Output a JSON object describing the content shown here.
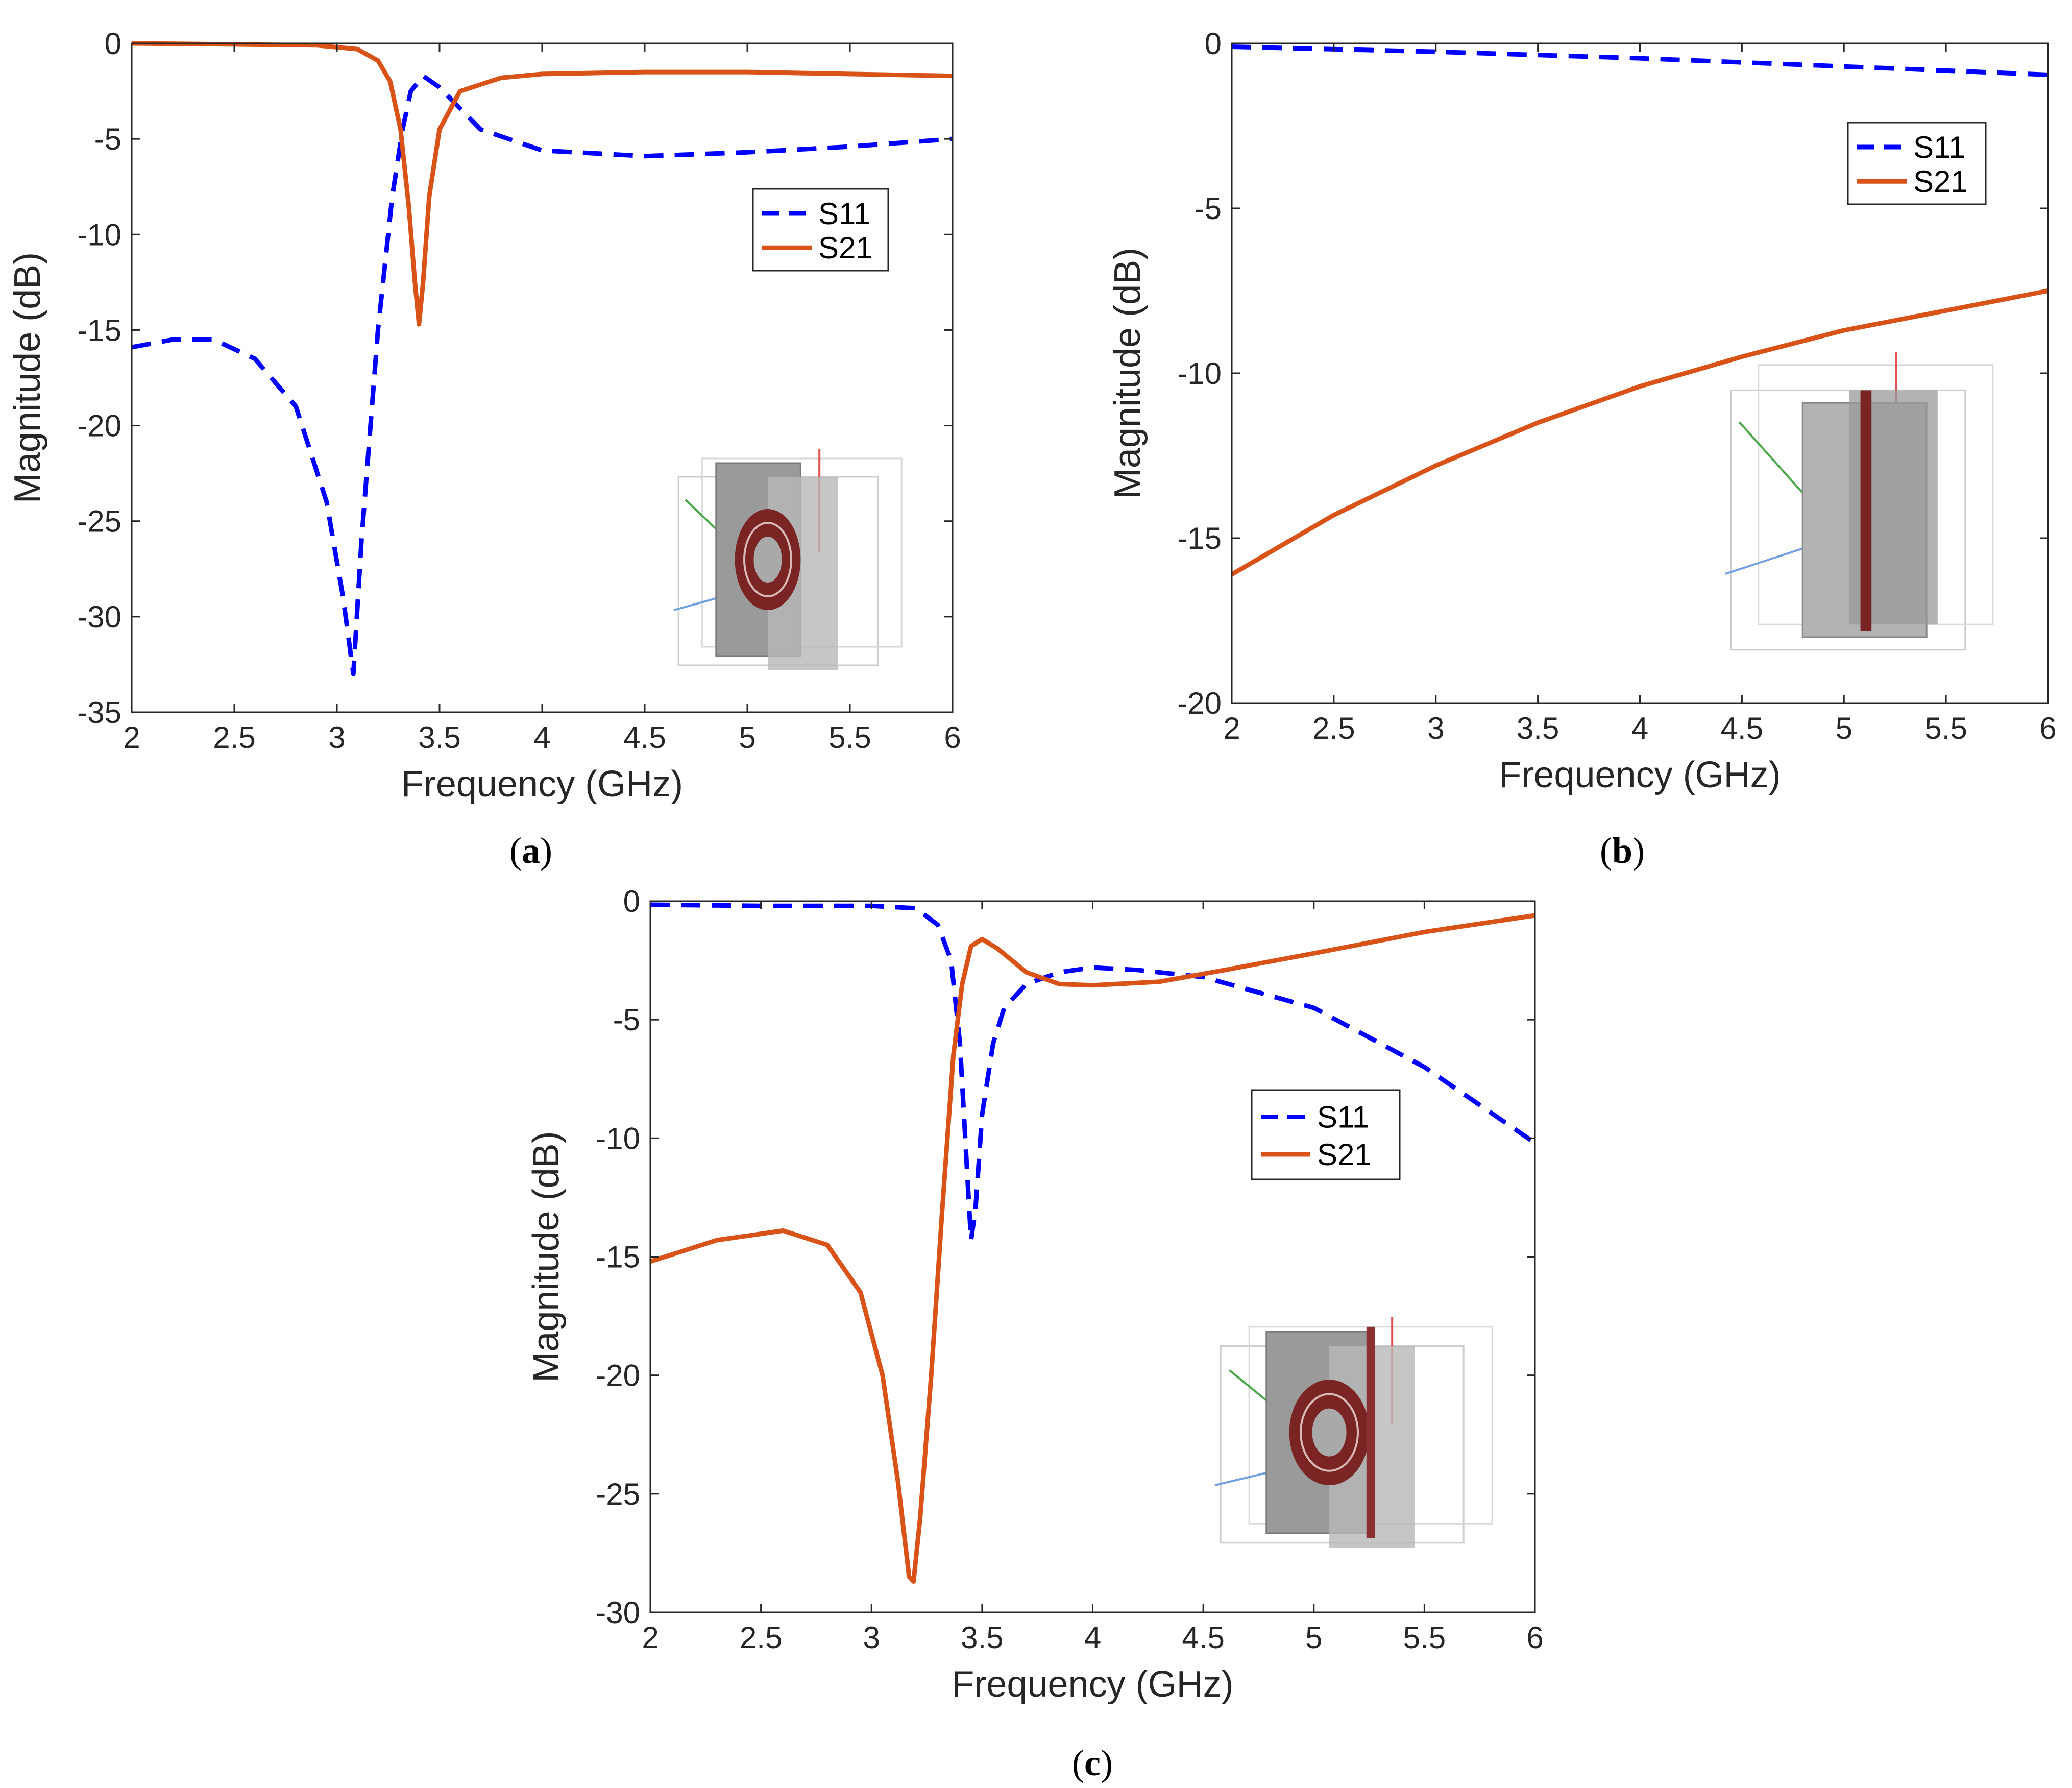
{
  "chart_data": [
    {
      "id": "a",
      "type": "line",
      "caption": "a",
      "xlabel": "Frequency (GHz)",
      "ylabel": "Magnitude (dB)",
      "xlim": [
        2,
        6
      ],
      "ylim": [
        -35,
        0
      ],
      "xticks": [
        "2",
        "2.5",
        "3",
        "3.5",
        "4",
        "4.5",
        "5",
        "5.5",
        "6"
      ],
      "yticks": [
        "0",
        "-5",
        "-10",
        "-15",
        "-20",
        "-25",
        "-30",
        "-35"
      ],
      "legend_position": "upper-right",
      "inset": "ring-resonator",
      "series": [
        {
          "name": "S11",
          "style": "dashed",
          "color": "#0000ff",
          "points": [
            [
              2,
              -15.9
            ],
            [
              2.2,
              -15.5
            ],
            [
              2.4,
              -15.5
            ],
            [
              2.6,
              -16.5
            ],
            [
              2.8,
              -19
            ],
            [
              2.95,
              -24
            ],
            [
              3.03,
              -29
            ],
            [
              3.08,
              -33
            ],
            [
              3.12,
              -26
            ],
            [
              3.2,
              -15
            ],
            [
              3.27,
              -8
            ],
            [
              3.32,
              -4.5
            ],
            [
              3.36,
              -2.5
            ],
            [
              3.42,
              -1.7
            ],
            [
              3.5,
              -2.3
            ],
            [
              3.7,
              -4.5
            ],
            [
              4,
              -5.6
            ],
            [
              4.5,
              -5.9
            ],
            [
              5,
              -5.7
            ],
            [
              5.5,
              -5.4
            ],
            [
              6,
              -5
            ]
          ]
        },
        {
          "name": "S21",
          "style": "solid",
          "color": "#d95319",
          "points": [
            [
              2,
              0
            ],
            [
              2.5,
              -0.05
            ],
            [
              2.9,
              -0.1
            ],
            [
              3.1,
              -0.3
            ],
            [
              3.2,
              -0.9
            ],
            [
              3.26,
              -2
            ],
            [
              3.31,
              -4.5
            ],
            [
              3.35,
              -8.5
            ],
            [
              3.38,
              -12.5
            ],
            [
              3.4,
              -14.7
            ],
            [
              3.42,
              -12.5
            ],
            [
              3.45,
              -8
            ],
            [
              3.5,
              -4.5
            ],
            [
              3.6,
              -2.5
            ],
            [
              3.8,
              -1.8
            ],
            [
              4,
              -1.6
            ],
            [
              4.5,
              -1.5
            ],
            [
              5,
              -1.5
            ],
            [
              5.5,
              -1.6
            ],
            [
              6,
              -1.7
            ]
          ]
        }
      ]
    },
    {
      "id": "b",
      "type": "line",
      "caption": "b",
      "xlabel": "Frequency (GHz)",
      "ylabel": "Magnitude (dB)",
      "xlim": [
        2,
        6
      ],
      "ylim": [
        -20,
        0
      ],
      "xticks": [
        "2",
        "2.5",
        "3",
        "3.5",
        "4",
        "4.5",
        "5",
        "5.5",
        "6"
      ],
      "yticks": [
        "0",
        "-5",
        "-10",
        "-15",
        "-20"
      ],
      "legend_position": "upper-right",
      "inset": "metal-strip",
      "series": [
        {
          "name": "S11",
          "style": "dashed",
          "color": "#0000ff",
          "points": [
            [
              2,
              -0.1
            ],
            [
              3,
              -0.25
            ],
            [
              4,
              -0.45
            ],
            [
              5,
              -0.7
            ],
            [
              6,
              -0.95
            ]
          ]
        },
        {
          "name": "S21",
          "style": "solid",
          "color": "#d95319",
          "points": [
            [
              2,
              -16.1
            ],
            [
              2.5,
              -14.3
            ],
            [
              3,
              -12.8
            ],
            [
              3.5,
              -11.5
            ],
            [
              4,
              -10.4
            ],
            [
              4.5,
              -9.5
            ],
            [
              5,
              -8.7
            ],
            [
              5.5,
              -8.1
            ],
            [
              6,
              -7.5
            ]
          ]
        }
      ]
    },
    {
      "id": "c",
      "type": "line",
      "caption": "c",
      "xlabel": "Frequency (GHz)",
      "ylabel": "Magnitude (dB)",
      "xlim": [
        2,
        6
      ],
      "ylim": [
        -30,
        0
      ],
      "xticks": [
        "2",
        "2.5",
        "3",
        "3.5",
        "4",
        "4.5",
        "5",
        "5.5",
        "6"
      ],
      "yticks": [
        "0",
        "-5",
        "-10",
        "-15",
        "-20",
        "-25",
        "-30"
      ],
      "legend_position": "right",
      "inset": "ring-with-strip",
      "series": [
        {
          "name": "S11",
          "style": "dashed",
          "color": "#0000ff",
          "points": [
            [
              2,
              -0.15
            ],
            [
              2.5,
              -0.2
            ],
            [
              3,
              -0.2
            ],
            [
              3.2,
              -0.3
            ],
            [
              3.3,
              -1
            ],
            [
              3.36,
              -2.5
            ],
            [
              3.4,
              -6
            ],
            [
              3.43,
              -11
            ],
            [
              3.45,
              -14.3
            ],
            [
              3.47,
              -13
            ],
            [
              3.5,
              -9
            ],
            [
              3.55,
              -6
            ],
            [
              3.6,
              -4.5
            ],
            [
              3.7,
              -3.5
            ],
            [
              3.85,
              -3
            ],
            [
              4,
              -2.8
            ],
            [
              4.2,
              -2.9
            ],
            [
              4.5,
              -3.2
            ],
            [
              5,
              -4.5
            ],
            [
              5.5,
              -7
            ],
            [
              6,
              -10.2
            ]
          ]
        },
        {
          "name": "S21",
          "style": "solid",
          "color": "#d95319",
          "points": [
            [
              2,
              -15.2
            ],
            [
              2.3,
              -14.3
            ],
            [
              2.6,
              -13.9
            ],
            [
              2.8,
              -14.5
            ],
            [
              2.95,
              -16.5
            ],
            [
              3.05,
              -20
            ],
            [
              3.12,
              -24.5
            ],
            [
              3.17,
              -28.5
            ],
            [
              3.19,
              -28.7
            ],
            [
              3.22,
              -26
            ],
            [
              3.27,
              -20
            ],
            [
              3.32,
              -13
            ],
            [
              3.37,
              -6.5
            ],
            [
              3.41,
              -3.5
            ],
            [
              3.45,
              -1.9
            ],
            [
              3.5,
              -1.6
            ],
            [
              3.57,
              -2
            ],
            [
              3.7,
              -3
            ],
            [
              3.85,
              -3.5
            ],
            [
              4,
              -3.55
            ],
            [
              4.3,
              -3.4
            ],
            [
              4.6,
              -2.9
            ],
            [
              5,
              -2.2
            ],
            [
              5.5,
              -1.3
            ],
            [
              6,
              -0.6
            ]
          ]
        }
      ]
    }
  ]
}
